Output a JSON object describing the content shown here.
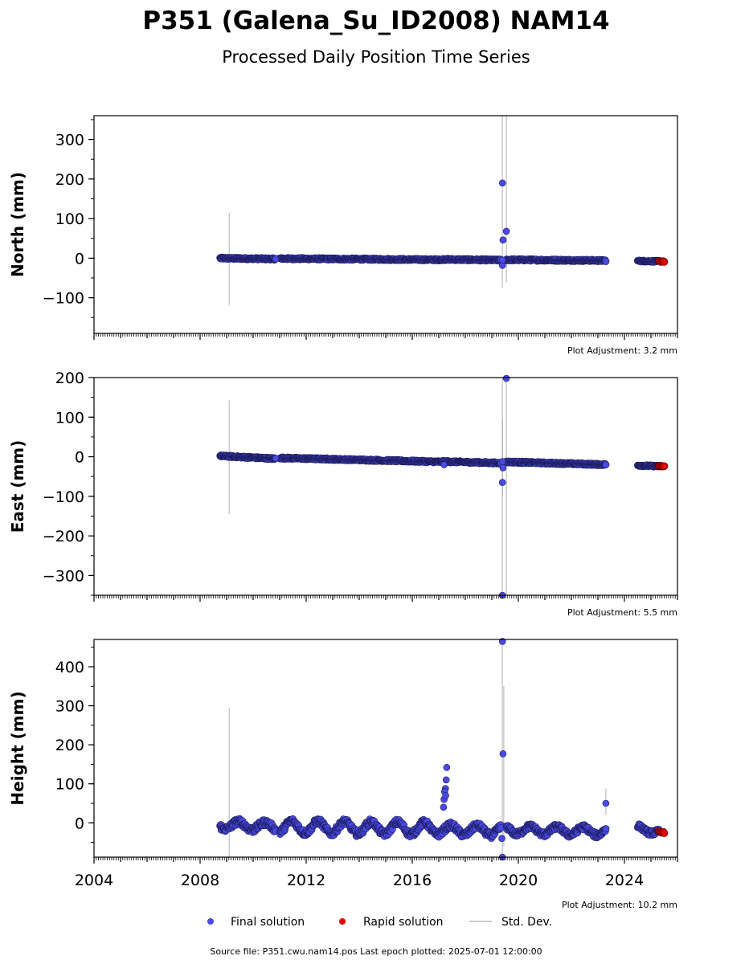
{
  "title": "P351 (Galena_Su_ID2008) NAM14",
  "subtitle": "Processed Daily Position Time Series",
  "footer": "Source file: P351.cwu.nam14.pos  Last epoch plotted: 2025-07-01 12:00:00",
  "legend": {
    "final_label": "Final solution",
    "rapid_label": "Rapid solution",
    "std_label": "Std. Dev."
  },
  "colors": {
    "final": "#4a4ae6",
    "final_edge": "#1a1a55",
    "rapid": "#e00000",
    "std": "#cccccc"
  },
  "chart_data": [
    {
      "type": "scatter",
      "ylabel": "North (mm)",
      "adjustment": "Plot Adjustment: 3.2 mm",
      "xlim": [
        2004,
        2026
      ],
      "ylim": [
        -190,
        360
      ],
      "yticks": [
        -100,
        0,
        100,
        200,
        300
      ],
      "ytick_labels": [
        "−100",
        "0",
        "100",
        "200",
        "300"
      ],
      "trend": {
        "segments": [
          {
            "x0": 2008.75,
            "x1": 2010.85,
            "y0": 0,
            "y1": -2,
            "noise": 2.5
          },
          {
            "x0": 2011.0,
            "x1": 2017.15,
            "y0": -1,
            "y1": -4,
            "noise": 2.5
          },
          {
            "x0": 2017.15,
            "x1": 2019.35,
            "y0": -3,
            "y1": -5,
            "noise": 2.5
          },
          {
            "x0": 2019.55,
            "x1": 2023.3,
            "y0": -4,
            "y1": -6,
            "noise": 2.5
          },
          {
            "x0": 2024.5,
            "x1": 2025.3,
            "y0": -7,
            "y1": -8,
            "noise": 2.0
          }
        ],
        "rapid": {
          "x0": 2025.3,
          "x1": 2025.5,
          "y0": -8,
          "y1": -8
        }
      },
      "outliers": [
        [
          2019.4,
          190
        ],
        [
          2019.42,
          46
        ],
        [
          2019.55,
          68
        ],
        [
          2019.4,
          -18
        ],
        [
          2019.4,
          -5
        ],
        [
          2010.85,
          -2
        ]
      ],
      "stddev": [
        [
          2009.1,
          -118,
          115
        ],
        [
          2019.4,
          -75,
          360
        ],
        [
          2019.55,
          -60,
          360
        ]
      ]
    },
    {
      "type": "scatter",
      "ylabel": "East (mm)",
      "adjustment": "Plot Adjustment: 5.5 mm",
      "xlim": [
        2004,
        2026
      ],
      "ylim": [
        -350,
        200
      ],
      "yticks": [
        -300,
        -200,
        -100,
        0,
        100,
        200
      ],
      "ytick_labels": [
        "−300",
        "−200",
        "−100",
        "0",
        "100",
        "200"
      ],
      "trend": {
        "segments": [
          {
            "x0": 2008.75,
            "x1": 2010.85,
            "y0": 2,
            "y1": -5,
            "noise": 2.5
          },
          {
            "x0": 2011.0,
            "x1": 2017.15,
            "y0": -3,
            "y1": -13,
            "noise": 2.5
          },
          {
            "x0": 2017.15,
            "x1": 2019.35,
            "y0": -12,
            "y1": -16,
            "noise": 2.5
          },
          {
            "x0": 2019.55,
            "x1": 2023.3,
            "y0": -13,
            "y1": -20,
            "noise": 2.5
          },
          {
            "x0": 2024.5,
            "x1": 2025.3,
            "y0": -22,
            "y1": -24,
            "noise": 2.0
          }
        ],
        "rapid": {
          "x0": 2025.3,
          "x1": 2025.5,
          "y0": -24,
          "y1": -24
        }
      },
      "outliers": [
        [
          2019.4,
          -65
        ],
        [
          2019.42,
          -28
        ],
        [
          2019.4,
          -12
        ],
        [
          2019.55,
          198
        ],
        [
          2019.4,
          -350
        ],
        [
          2010.85,
          -4
        ],
        [
          2017.2,
          -20
        ]
      ],
      "stddev": [
        [
          2009.1,
          -145,
          143
        ],
        [
          2019.4,
          -100,
          95
        ],
        [
          2019.4,
          -350,
          200
        ],
        [
          2019.55,
          -350,
          200
        ]
      ]
    },
    {
      "type": "scatter",
      "ylabel": "Height (mm)",
      "adjustment": "Plot Adjustment: 10.2 mm",
      "xlim": [
        2004,
        2026
      ],
      "ylim": [
        -88,
        470
      ],
      "yticks": [
        0,
        100,
        200,
        300,
        400
      ],
      "ytick_labels": [
        "0",
        "100",
        "200",
        "300",
        "400"
      ],
      "xticks": [
        2004,
        2008,
        2012,
        2016,
        2020,
        2024
      ],
      "xtick_labels": [
        "2004",
        "2008",
        "2012",
        "2016",
        "2020",
        "2024"
      ],
      "trend": {
        "segments": [
          {
            "x0": 2008.75,
            "x1": 2010.85,
            "y0": -5,
            "y1": -10,
            "noise": 8,
            "amp": 10
          },
          {
            "x0": 2011.0,
            "x1": 2017.15,
            "y0": -10,
            "y1": -15,
            "noise": 8,
            "amp": 15
          },
          {
            "x0": 2017.15,
            "x1": 2019.35,
            "y0": -18,
            "y1": -20,
            "noise": 8,
            "amp": 12
          },
          {
            "x0": 2019.55,
            "x1": 2023.3,
            "y0": -18,
            "y1": -22,
            "noise": 7,
            "amp": 10
          },
          {
            "x0": 2024.5,
            "x1": 2025.3,
            "y0": -12,
            "y1": -25,
            "noise": 6,
            "amp": 6
          }
        ],
        "rapid": {
          "x0": 2025.3,
          "x1": 2025.5,
          "y0": -22,
          "y1": -25
        }
      },
      "outliers": [
        [
          2017.3,
          142
        ],
        [
          2017.28,
          110
        ],
        [
          2017.25,
          88
        ],
        [
          2017.22,
          80
        ],
        [
          2017.2,
          60
        ],
        [
          2017.18,
          40
        ],
        [
          2017.26,
          70
        ],
        [
          2019.4,
          465
        ],
        [
          2019.42,
          177
        ],
        [
          2019.4,
          -88
        ],
        [
          2023.3,
          50
        ],
        [
          2019.38,
          -40
        ]
      ],
      "stddev": [
        [
          2009.1,
          -88,
          295
        ],
        [
          2019.4,
          -88,
          470
        ],
        [
          2019.45,
          -60,
          350
        ],
        [
          2023.3,
          20,
          88
        ]
      ]
    }
  ]
}
